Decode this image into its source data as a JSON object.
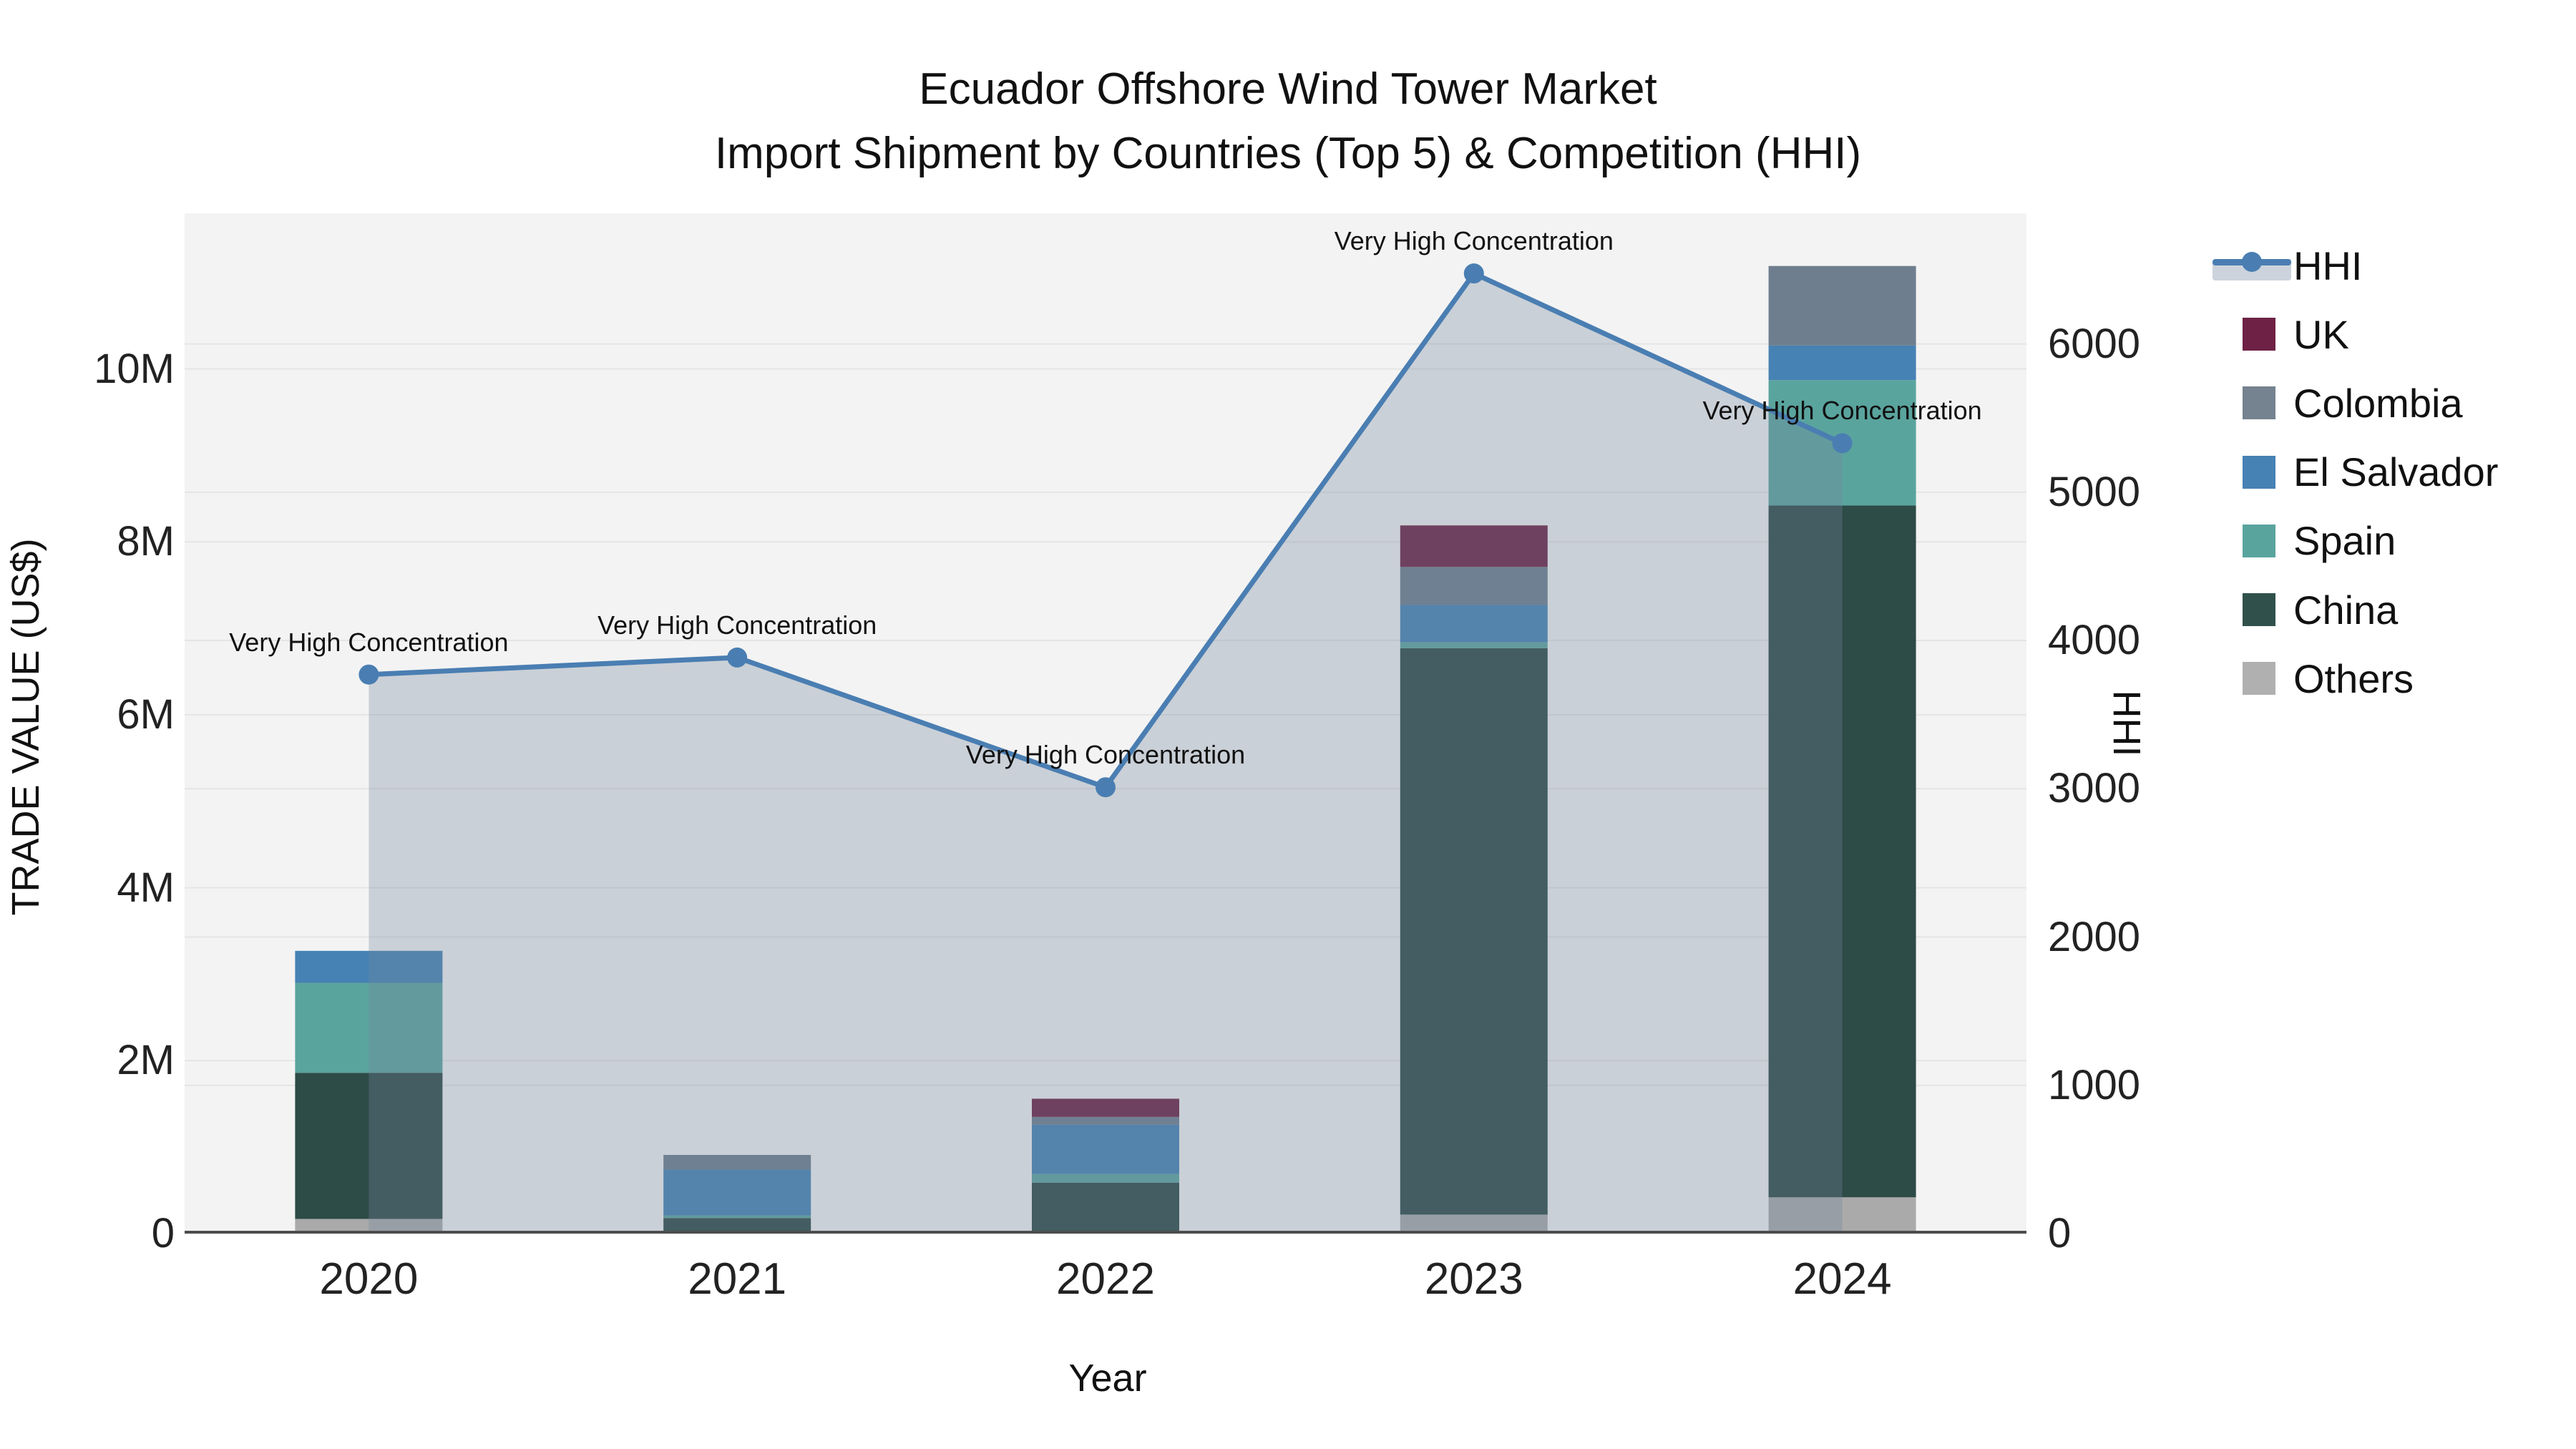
{
  "title": {
    "line1": "Ecuador Offshore Wind Tower Market",
    "line2": "Import Shipment by Countries (Top 5) & Competition (HHI)"
  },
  "axes": {
    "x": {
      "title": "Year",
      "ticks": [
        "2020",
        "2021",
        "2022",
        "2023",
        "2024"
      ]
    },
    "y_left": {
      "title": "TRADE VALUE (US$)",
      "ticks": [
        "0",
        "2M",
        "4M",
        "6M",
        "8M",
        "10M"
      ],
      "tick_values_m": [
        0,
        2,
        4,
        6,
        8,
        10
      ],
      "max_m": 11.8
    },
    "y_right": {
      "title": "HHI",
      "ticks": [
        "0",
        "1000",
        "2000",
        "3000",
        "4000",
        "5000",
        "6000"
      ],
      "tick_values": [
        0,
        1000,
        2000,
        3000,
        4000,
        5000,
        6000
      ],
      "max": 6881
    }
  },
  "chart_data": {
    "type": "combo: stacked bar (trade value, M US$) + line-area (HHI)",
    "categories": [
      "2020",
      "2021",
      "2022",
      "2023",
      "2024"
    ],
    "bar_unit": "M US$",
    "stack_order_bottom_to_top": [
      "Others",
      "China",
      "Spain",
      "El Salvador",
      "Colombia",
      "UK"
    ],
    "series": [
      {
        "name": "Others",
        "color": "#aaaaaa",
        "values": [
          0.17,
          0,
          0,
          0.22,
          0.42
        ]
      },
      {
        "name": "China",
        "color": "#2d4b47",
        "values": [
          1.69,
          0.18,
          0.59,
          6.55,
          8.0
        ]
      },
      {
        "name": "Spain",
        "color": "#5aa49e",
        "values": [
          1.04,
          0.03,
          0.1,
          0.07,
          1.45
        ]
      },
      {
        "name": "El Salvador",
        "color": "#4682b4",
        "values": [
          0.37,
          0.53,
          0.57,
          0.43,
          0.4
        ]
      },
      {
        "name": "Colombia",
        "color": "#6e7e8e",
        "values": [
          0,
          0.17,
          0.09,
          0.44,
          0.92
        ]
      },
      {
        "name": "UK",
        "color": "#6e2144",
        "values": [
          0,
          0,
          0.21,
          0.48,
          0
        ]
      }
    ],
    "line": {
      "name": "HHI",
      "color": "#4a7eb2",
      "area_fill": "rgba(114,133,155,0.32)",
      "values": [
        3770,
        3885,
        3010,
        6475,
        5330
      ]
    },
    "annotations": [
      {
        "text": "Very High Concentration",
        "category": "2020"
      },
      {
        "text": "Very High Concentration",
        "category": "2021"
      },
      {
        "text": "Very High Concentration",
        "category": "2022"
      },
      {
        "text": "Very High Concentration",
        "category": "2023"
      },
      {
        "text": "Very High Concentration",
        "category": "2024"
      }
    ],
    "layout_hints": {
      "grid": true,
      "legend_position": "right",
      "plot_bg": "#f3f3f3",
      "axis_line_color": "#4d4d4d",
      "gridline_color": "#e5e5e5"
    }
  },
  "legend": {
    "items": [
      {
        "label": "HHI",
        "type": "line",
        "color": "#4a7eb2"
      },
      {
        "label": "UK",
        "type": "square",
        "color": "#6e2144"
      },
      {
        "label": "Colombia",
        "type": "square",
        "color": "#75828f"
      },
      {
        "label": "El Salvador",
        "type": "square",
        "color": "#4682b4"
      },
      {
        "label": "Spain",
        "type": "square",
        "color": "#5aa49e"
      },
      {
        "label": "China",
        "type": "square",
        "color": "#30504b"
      },
      {
        "label": "Others",
        "type": "square",
        "color": "#b0b0b0"
      }
    ]
  }
}
